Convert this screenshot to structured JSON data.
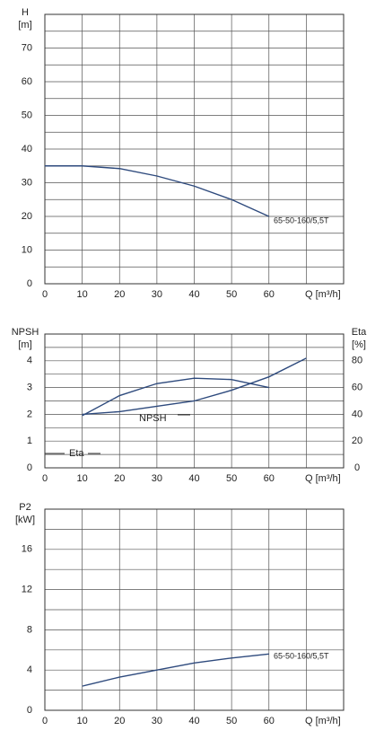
{
  "chart_data": [
    {
      "type": "line",
      "ylabel": "H",
      "yunit": "[m]",
      "xlabel": "Q [m³/h]",
      "xlim": [
        0,
        80
      ],
      "xticks": [
        0,
        10,
        20,
        30,
        40,
        50,
        60
      ],
      "x_minor_ticks": [
        70
      ],
      "ylim": [
        0,
        80
      ],
      "yticks": [
        0,
        10,
        20,
        30,
        40,
        50,
        60,
        70
      ],
      "y_minor_ticks": [
        5,
        15,
        25,
        35,
        45,
        55,
        65,
        75
      ],
      "grid": true,
      "x": [
        0,
        10,
        20,
        30,
        40,
        50,
        60
      ],
      "series": [
        {
          "name": "65-50-160/5,5T",
          "color": "#2e4a7d",
          "values": [
            35,
            35,
            34.2,
            32,
            29,
            25,
            20
          ]
        }
      ]
    },
    {
      "type": "line",
      "ylabel": "NPSH",
      "yunit": "[m]",
      "y2label": "Eta",
      "y2unit": "[%]",
      "xlabel": "Q [m³/h]",
      "xlim": [
        0,
        80
      ],
      "xticks": [
        0,
        10,
        20,
        30,
        40,
        50,
        60
      ],
      "x_minor_ticks": [
        70
      ],
      "ylim": [
        0,
        5
      ],
      "yticks": [
        0,
        1,
        2,
        3,
        4
      ],
      "y_minor_ticks": [
        0.5,
        1.5,
        2.5,
        3.5,
        4.5
      ],
      "grid": true,
      "y2lim": [
        0,
        100
      ],
      "y2ticks": [
        0,
        20,
        40,
        60,
        80
      ],
      "series": [
        {
          "name": "NPSH",
          "color": "#2e4a7d",
          "x": [
            10,
            20,
            30,
            40,
            50,
            60,
            70
          ],
          "values": [
            2.0,
            2.1,
            2.3,
            2.5,
            2.9,
            3.4,
            4.1
          ]
        },
        {
          "name": "Eta",
          "color": "#2e4a7d",
          "axis": "y2",
          "x": [
            10,
            20,
            30,
            40,
            50,
            60
          ],
          "values": [
            39,
            54,
            63,
            67,
            66,
            60
          ]
        }
      ]
    },
    {
      "type": "line",
      "ylabel": "P2",
      "yunit": "[kW]",
      "xlabel": "Q [m³/h]",
      "xlim": [
        0,
        80
      ],
      "xticks": [
        0,
        10,
        20,
        30,
        40,
        50,
        60
      ],
      "x_minor_ticks": [
        70
      ],
      "ylim": [
        0,
        20
      ],
      "yticks": [
        0,
        4,
        8,
        12,
        16
      ],
      "y_minor_ticks": [
        2,
        6,
        10,
        14,
        18
      ],
      "grid": true,
      "x": [
        10,
        20,
        30,
        40,
        50,
        60
      ],
      "series": [
        {
          "name": "65-50-160/5,5T",
          "color": "#2e4a7d",
          "values": [
            2.4,
            3.3,
            4.0,
            4.7,
            5.2,
            5.6
          ]
        }
      ]
    }
  ]
}
